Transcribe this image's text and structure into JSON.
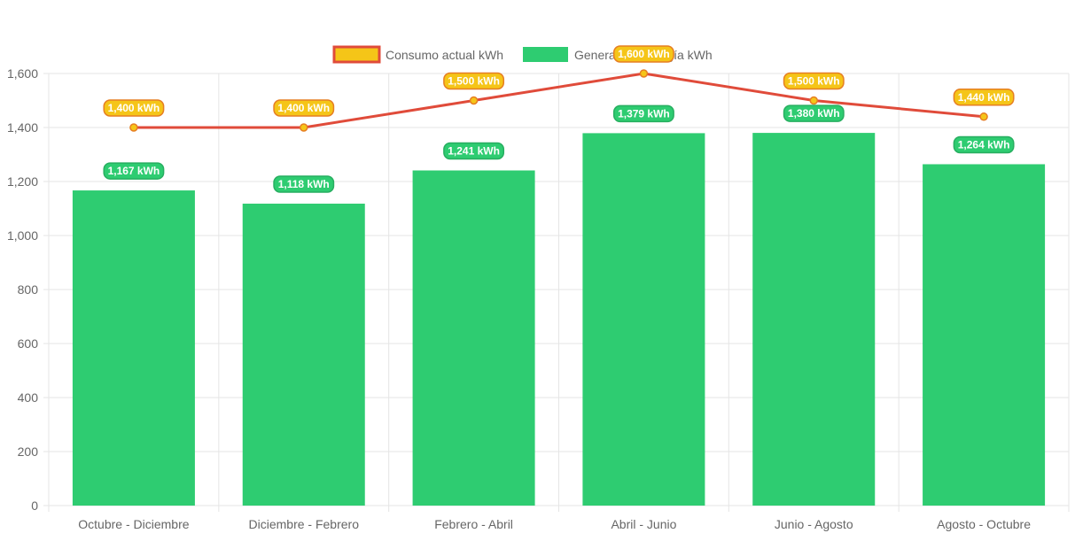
{
  "chart_data": {
    "type": "bar",
    "categories": [
      "Octubre - Diciembre",
      "Diciembre - Febrero",
      "Febrero - Abril",
      "Abril - Junio",
      "Junio - Agosto",
      "Agosto - Octubre"
    ],
    "series": [
      {
        "name": "Consumo actual kWh",
        "type": "line",
        "values": [
          1400,
          1400,
          1500,
          1600,
          1500,
          1440
        ],
        "data_labels": [
          "1,400 kWh",
          "1,400 kWh",
          "1,500 kWh",
          "1,600 kWh",
          "1,500 kWh",
          "1,440 kWh"
        ],
        "line_color": "#e04b3a",
        "point_color": "#f5c518",
        "label_bg": "#f5c518",
        "label_border": "#e67e22"
      },
      {
        "name": "Generación energía kWh",
        "type": "bar",
        "values": [
          1167,
          1118,
          1241,
          1379,
          1380,
          1264
        ],
        "data_labels": [
          "1,167 kWh",
          "1,118 kWh",
          "1,241 kWh",
          "1,379 kWh",
          "1,380 kWh",
          "1,264 kWh"
        ],
        "color": "#2ecc71",
        "label_bg": "#2ecc71",
        "label_border": "#27ae60"
      }
    ],
    "ylim": [
      0,
      1600
    ],
    "y_ticks": [
      "0",
      "200",
      "400",
      "600",
      "800",
      "1,000",
      "1,200",
      "1,400",
      "1,600"
    ],
    "y_tick_values": [
      0,
      200,
      400,
      600,
      800,
      1000,
      1200,
      1400,
      1600
    ],
    "grid": true,
    "legend_position": "top",
    "grid_color": "#e5e5e5",
    "text_color": "#666666"
  }
}
